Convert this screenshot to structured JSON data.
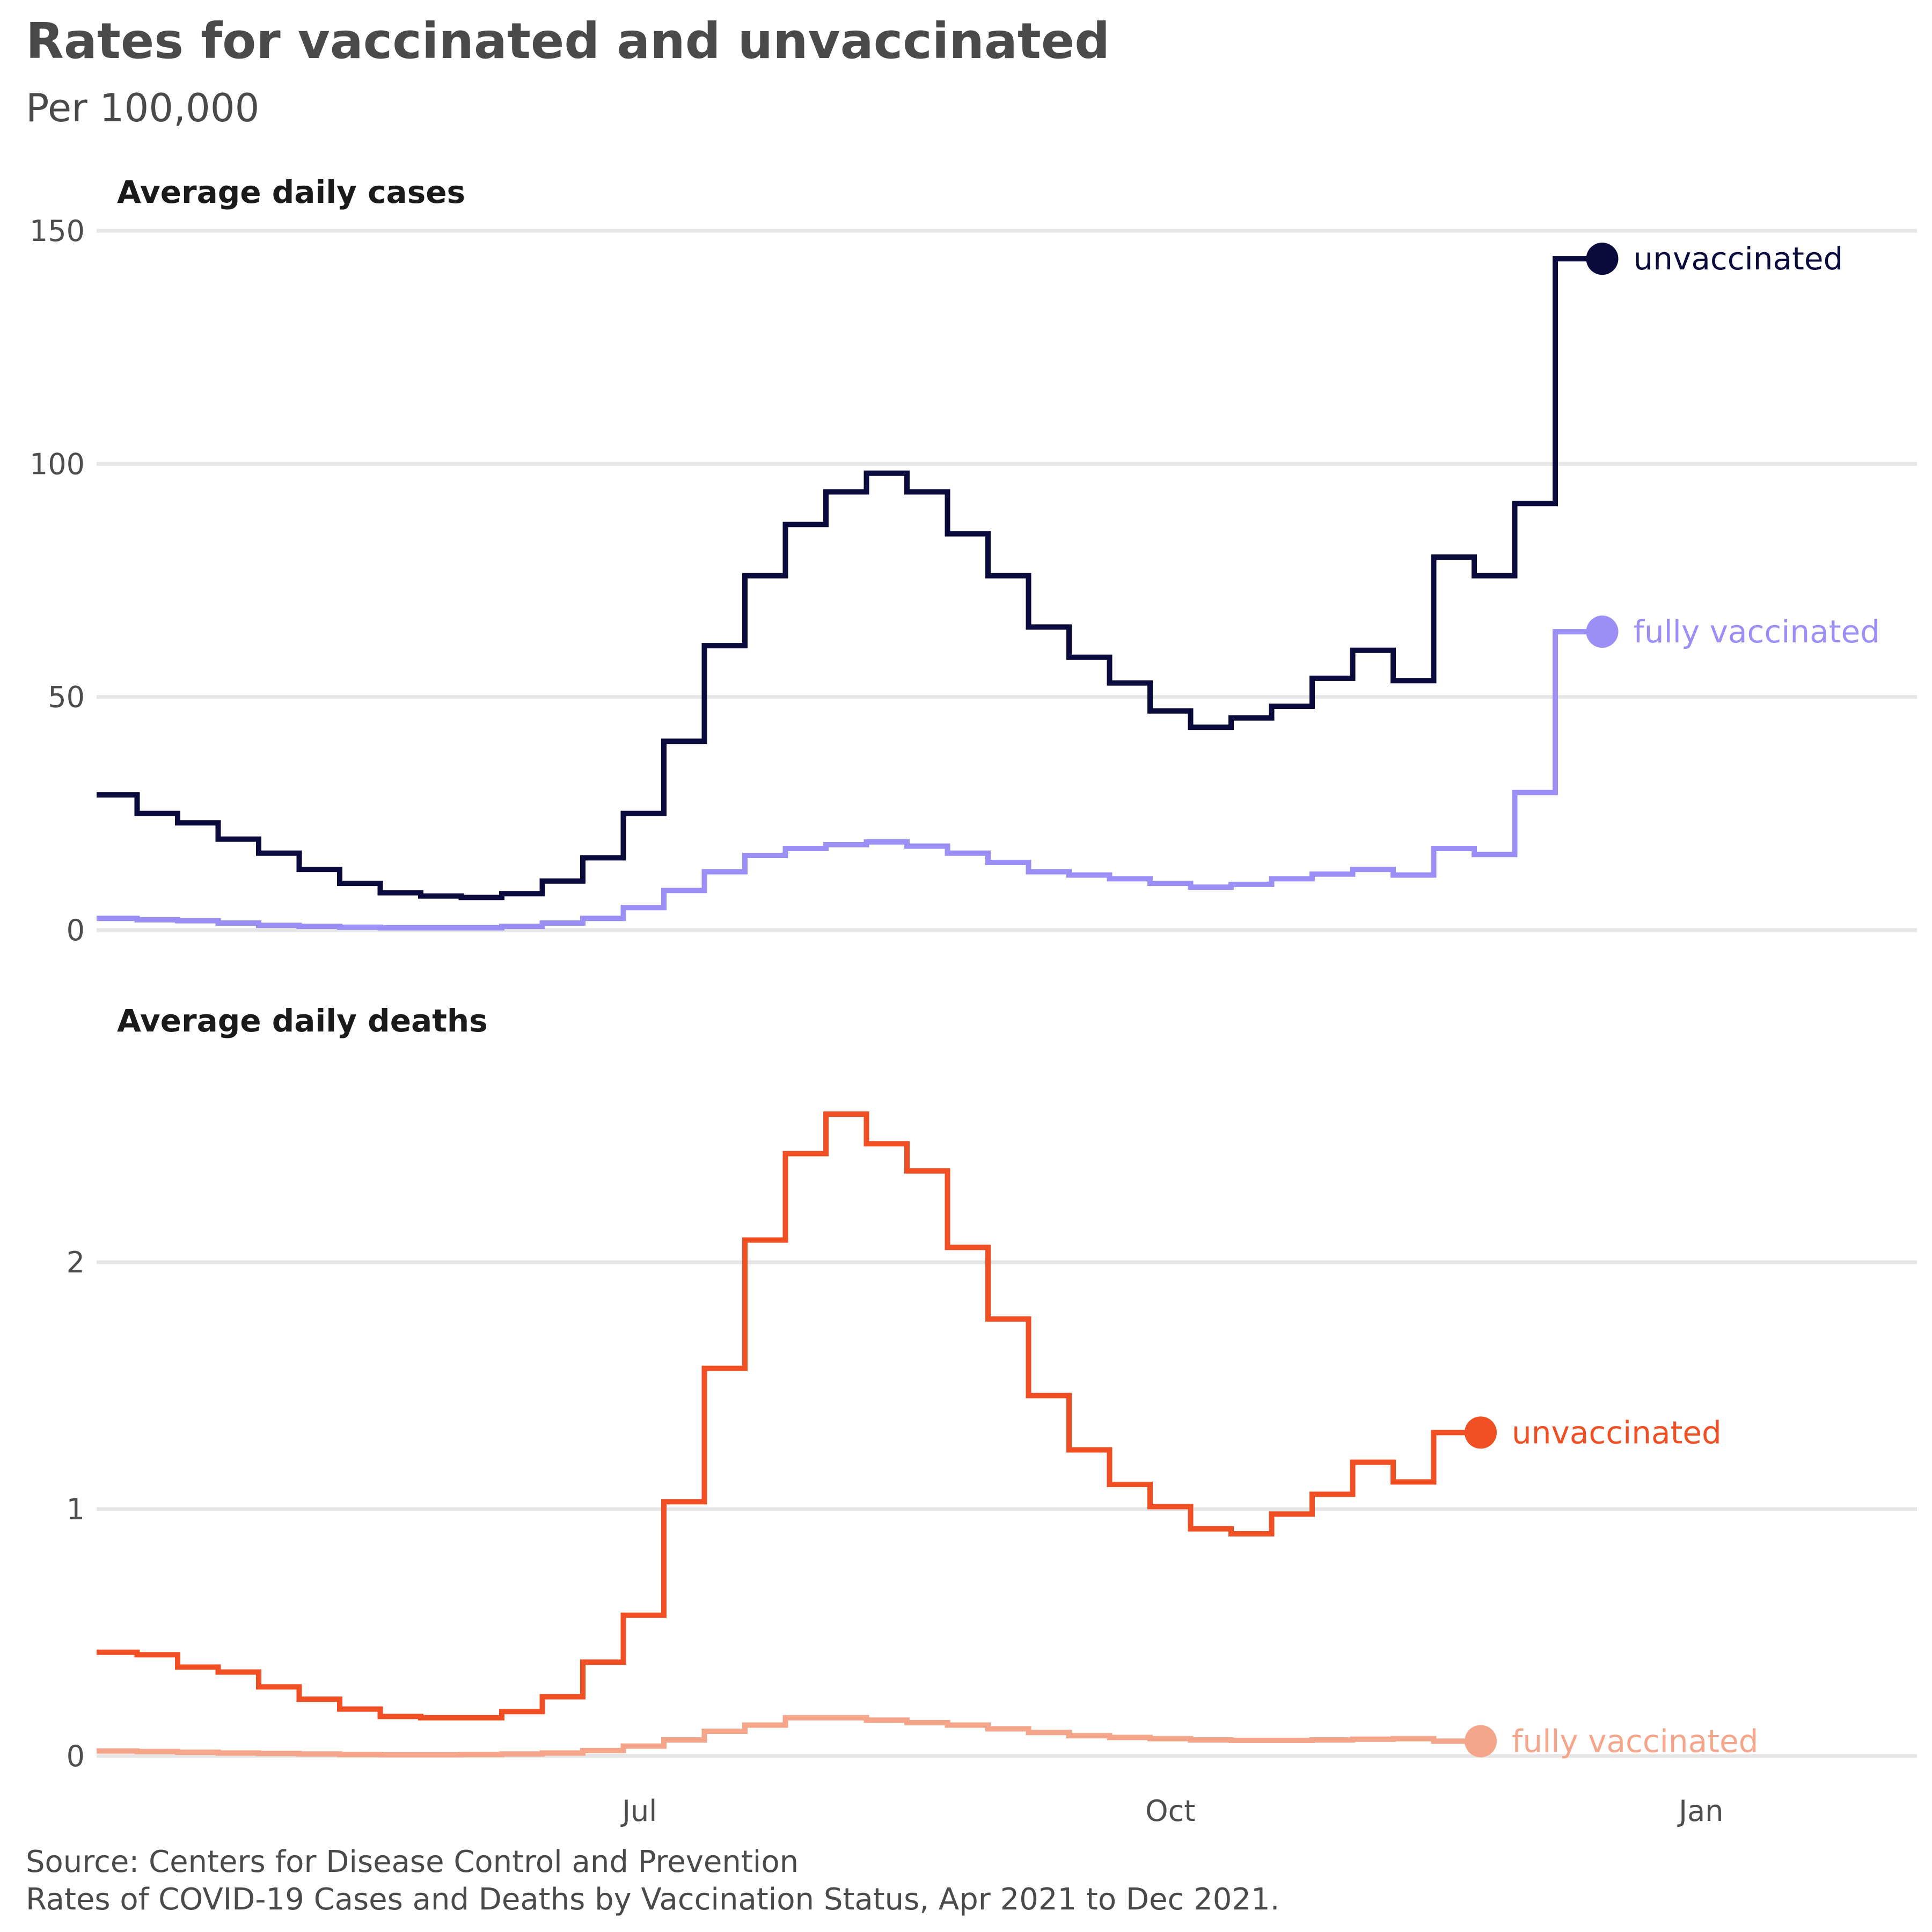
{
  "title": "Rates for vaccinated and unvaccinated",
  "subtitle": "Per 100,000",
  "source": [
    "Source: Centers for Disease Control and Prevention",
    "Rates of COVID-19 Cases and Deaths by Vaccination Status, Apr 2021 to Dec 2021."
  ],
  "x_ticks": [
    {
      "label": "Jul",
      "week": 13.4
    },
    {
      "label": "Oct",
      "week": 26.5
    },
    {
      "label": "Jan",
      "week": 39.6
    }
  ],
  "x_domain_weeks": [
    0,
    45
  ],
  "chart_data": [
    {
      "type": "line",
      "step": true,
      "title": "Average daily cases",
      "ylim": [
        0,
        150
      ],
      "y_ticks": [
        0,
        50,
        100,
        150
      ],
      "grid": true,
      "series": [
        {
          "name": "unvaccinated",
          "color": "#0a0a3c",
          "values": [
            29,
            25,
            23,
            19.5,
            16.5,
            13,
            10,
            8,
            7.3,
            7,
            7.8,
            10.5,
            15.5,
            25,
            40.5,
            61,
            76,
            87,
            94,
            98,
            94,
            85,
            76,
            65,
            58.5,
            53,
            47,
            43.5,
            45.5,
            48,
            54,
            60,
            53.5,
            80,
            76,
            91.5,
            144,
            144
          ]
        },
        {
          "name": "fully vaccinated",
          "color": "#9b8ff5",
          "values": [
            2.5,
            2.2,
            2,
            1.5,
            1,
            0.8,
            0.6,
            0.5,
            0.5,
            0.5,
            0.8,
            1.5,
            2.5,
            4.8,
            8.5,
            12.5,
            16,
            17.5,
            18.3,
            18.9,
            18,
            16.5,
            14.5,
            12.5,
            11.8,
            11,
            10,
            9.2,
            9.8,
            11,
            12,
            13,
            11.8,
            17.5,
            16.2,
            29.5,
            64,
            64
          ]
        }
      ]
    },
    {
      "type": "line",
      "step": true,
      "title": "Average daily deaths",
      "ylim": [
        0,
        2.7
      ],
      "y_ticks": [
        0,
        1,
        2
      ],
      "grid": true,
      "series": [
        {
          "name": "unvaccinated",
          "color": "#f04e23",
          "values": [
            0.42,
            0.41,
            0.36,
            0.34,
            0.28,
            0.23,
            0.19,
            0.16,
            0.155,
            0.155,
            0.18,
            0.24,
            0.38,
            0.57,
            1.03,
            1.57,
            2.09,
            2.44,
            2.6,
            2.48,
            2.37,
            2.06,
            1.77,
            1.46,
            1.24,
            1.1,
            1.01,
            0.92,
            0.9,
            0.98,
            1.06,
            1.19,
            1.11,
            1.31,
            1.31
          ]
        },
        {
          "name": "fully vaccinated",
          "color": "#f5a58a",
          "values": [
            0.02,
            0.018,
            0.015,
            0.012,
            0.01,
            0.008,
            0.006,
            0.005,
            0.005,
            0.006,
            0.008,
            0.012,
            0.022,
            0.04,
            0.065,
            0.1,
            0.125,
            0.155,
            0.155,
            0.145,
            0.135,
            0.125,
            0.11,
            0.095,
            0.082,
            0.075,
            0.07,
            0.065,
            0.063,
            0.063,
            0.065,
            0.068,
            0.07,
            0.06,
            0.06
          ]
        }
      ]
    }
  ]
}
